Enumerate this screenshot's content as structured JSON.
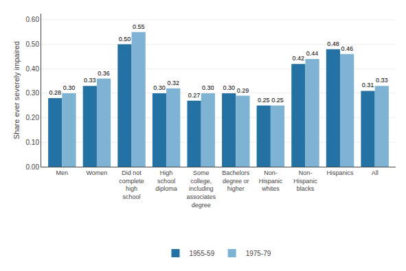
{
  "chart_data": {
    "type": "bar",
    "categories": [
      "Men",
      "Women",
      "Did not\ncomplete\nhigh\nschool",
      "High\nschool\ndiploma",
      "Some\ncollege,\nincluding\nassociates\ndegree",
      "Bachelors\ndegree or\nhigher",
      "Non-\nHispanic\nwhites",
      "Non-\nHispanic\nblacks",
      "Hispanics",
      "All"
    ],
    "series": [
      {
        "name": "1955-59",
        "color": "#2471a3",
        "values": [
          0.28,
          0.33,
          0.5,
          0.3,
          0.27,
          0.3,
          0.25,
          0.42,
          0.48,
          0.31
        ],
        "value_labels": [
          "0.28",
          "0.33",
          "0.50",
          "0.30",
          "0.27",
          "0.30",
          "0.25",
          "0.42",
          "0.48",
          "0.31"
        ]
      },
      {
        "name": "1975-79",
        "color": "#7fb3d3",
        "values": [
          0.3,
          0.36,
          0.55,
          0.32,
          0.3,
          0.29,
          0.25,
          0.44,
          0.46,
          0.33
        ],
        "value_labels": [
          "0.30",
          "0.36",
          "0.55",
          "0.32",
          "0.30",
          "0.29",
          "0.25",
          "0.44",
          "0.46",
          "0.33"
        ]
      }
    ],
    "ylabel": "Share ever severely impaired",
    "ylim": [
      0.0,
      0.625
    ],
    "yticks": [
      {
        "value": 0,
        "label": "0.00"
      },
      {
        "value": 0.1,
        "label": "0.10"
      },
      {
        "value": 0.2,
        "label": "0.20"
      },
      {
        "value": 0.3,
        "label": "0.30"
      },
      {
        "value": 0.4,
        "label": "0.40"
      },
      {
        "value": 0.5,
        "label": "0.50"
      },
      {
        "value": 0.6,
        "label": "0.60"
      }
    ],
    "grid": true,
    "legend": "bottom",
    "data_labels": true
  }
}
